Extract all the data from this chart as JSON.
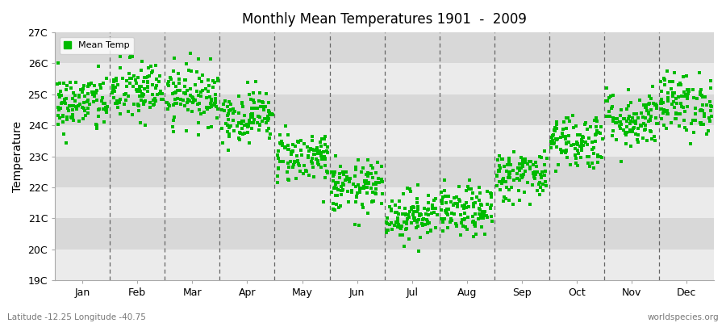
{
  "title": "Monthly Mean Temperatures 1901  -  2009",
  "ylabel": "Temperature",
  "footer_left": "Latitude -12.25 Longitude -40.75",
  "footer_right": "worldspecies.org",
  "legend_label": "Mean Temp",
  "marker_color": "#00bb00",
  "bg_light": "#ebebeb",
  "bg_dark": "#d8d8d8",
  "ylim": [
    19,
    27
  ],
  "yticks": [
    19,
    20,
    21,
    22,
    23,
    24,
    25,
    26,
    27
  ],
  "ytick_labels": [
    "19C",
    "20C",
    "21C",
    "22C",
    "23C",
    "24C",
    "25C",
    "26C",
    "27C"
  ],
  "months": [
    "Jan",
    "Feb",
    "Mar",
    "Apr",
    "May",
    "Jun",
    "Jul",
    "Aug",
    "Sep",
    "Oct",
    "Nov",
    "Dec"
  ],
  "n_years": 109,
  "mean_temps": [
    24.7,
    25.1,
    25.0,
    24.3,
    23.0,
    22.0,
    21.1,
    21.2,
    22.4,
    23.5,
    24.2,
    24.7
  ],
  "std_temps": [
    0.48,
    0.52,
    0.48,
    0.42,
    0.42,
    0.42,
    0.4,
    0.4,
    0.42,
    0.46,
    0.48,
    0.5
  ],
  "seed": 42
}
